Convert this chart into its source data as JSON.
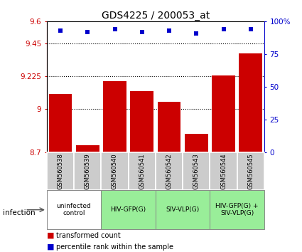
{
  "title": "GDS4225 / 200053_at",
  "samples": [
    "GSM560538",
    "GSM560539",
    "GSM560540",
    "GSM560541",
    "GSM560542",
    "GSM560543",
    "GSM560544",
    "GSM560545"
  ],
  "bar_values": [
    9.1,
    8.75,
    9.19,
    9.12,
    9.05,
    8.83,
    9.23,
    9.38
  ],
  "percentile_values": [
    93,
    92,
    94,
    92,
    93,
    91,
    94,
    94
  ],
  "ylim_left": [
    8.7,
    9.6
  ],
  "ylim_right": [
    0,
    100
  ],
  "yticks_left": [
    8.7,
    9.0,
    9.225,
    9.45,
    9.6
  ],
  "ytick_labels_left": [
    "8.7",
    "9",
    "9.225",
    "9.45",
    "9.6"
  ],
  "yticks_right": [
    0,
    25,
    50,
    75,
    100
  ],
  "ytick_labels_right": [
    "0",
    "25",
    "50",
    "75",
    "100%"
  ],
  "hlines": [
    9.45,
    9.225,
    9.0
  ],
  "bar_color": "#cc0000",
  "percentile_color": "#0000cc",
  "bar_bottom": 8.7,
  "group_info": [
    [
      0,
      1,
      "uninfected\ncontrol",
      "#ffffff"
    ],
    [
      2,
      3,
      "HIV-GFP(G)",
      "#99ee99"
    ],
    [
      4,
      5,
      "SIV-VLP(G)",
      "#99ee99"
    ],
    [
      6,
      7,
      "HIV-GFP(G) +\nSIV-VLP(G)",
      "#99ee99"
    ]
  ],
  "infection_label": "infection",
  "legend_bar_label": "transformed count",
  "legend_percentile_label": "percentile rank within the sample",
  "sample_bg_color": "#cccccc",
  "title_fontsize": 10
}
